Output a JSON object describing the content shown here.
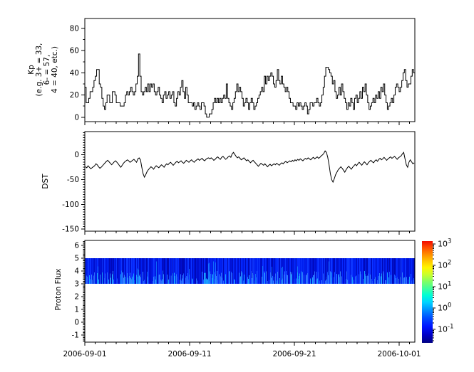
{
  "figure": {
    "background": "#ffffff",
    "axis_color": "#000000",
    "trace_color": "#000000"
  },
  "x_axis": {
    "tick_labels": [
      "2006-09-01",
      "2006-09-11",
      "2006-09-21",
      "2006-10-01"
    ],
    "major_tick_days": [
      0,
      10,
      20,
      30
    ],
    "minor_tick_interval_days": 1,
    "range_days": [
      0,
      31.5
    ],
    "start_date": "2006-09-01",
    "end_date": "2006-10-01"
  },
  "chart_data": [
    {
      "type": "line",
      "subtype": "step",
      "name": "kp-index",
      "ylabel_lines": [
        "Kp",
        "(e.g. 3+ = 33,",
        "6- = 57,",
        "4 = 40, etc.)"
      ],
      "yticks": [
        0,
        20,
        40,
        60,
        80
      ],
      "minor_ytick_interval": 10,
      "ylim": [
        -4,
        89
      ],
      "step_hours": 3,
      "values": [
        27,
        13,
        13,
        17,
        23,
        23,
        27,
        33,
        37,
        43,
        43,
        30,
        27,
        17,
        10,
        7,
        13,
        20,
        20,
        13,
        13,
        23,
        23,
        20,
        13,
        13,
        13,
        10,
        10,
        10,
        13,
        20,
        23,
        20,
        23,
        27,
        23,
        20,
        23,
        30,
        37,
        57,
        37,
        23,
        20,
        23,
        27,
        23,
        30,
        23,
        30,
        27,
        30,
        23,
        20,
        23,
        27,
        20,
        17,
        13,
        20,
        23,
        17,
        20,
        23,
        17,
        20,
        23,
        13,
        10,
        17,
        23,
        20,
        27,
        33,
        23,
        17,
        27,
        20,
        13,
        13,
        13,
        10,
        13,
        7,
        10,
        13,
        10,
        7,
        13,
        13,
        10,
        3,
        0,
        0,
        3,
        3,
        7,
        13,
        17,
        13,
        17,
        13,
        17,
        13,
        17,
        20,
        17,
        30,
        17,
        13,
        10,
        7,
        13,
        17,
        23,
        30,
        23,
        27,
        23,
        17,
        10,
        13,
        17,
        13,
        7,
        13,
        17,
        13,
        7,
        10,
        13,
        17,
        20,
        23,
        27,
        23,
        37,
        30,
        37,
        33,
        37,
        40,
        37,
        30,
        27,
        33,
        43,
        33,
        30,
        37,
        30,
        27,
        23,
        27,
        23,
        17,
        13,
        13,
        10,
        10,
        7,
        13,
        10,
        13,
        10,
        7,
        10,
        13,
        10,
        3,
        7,
        13,
        13,
        10,
        13,
        13,
        17,
        13,
        10,
        13,
        20,
        27,
        37,
        45,
        45,
        43,
        40,
        37,
        30,
        33,
        23,
        17,
        20,
        27,
        20,
        30,
        23,
        17,
        13,
        7,
        13,
        10,
        17,
        13,
        7,
        17,
        20,
        13,
        17,
        23,
        17,
        27,
        23,
        30,
        20,
        13,
        7,
        10,
        13,
        17,
        13,
        20,
        17,
        23,
        17,
        27,
        23,
        30,
        20,
        13,
        7,
        10,
        13,
        17,
        13,
        20,
        27,
        30,
        27,
        23,
        27,
        33,
        40,
        43,
        33,
        27,
        30,
        30,
        37,
        43,
        40
      ]
    },
    {
      "type": "line",
      "name": "dst-index",
      "ylabel": "DST",
      "yticks": [
        0,
        -50,
        -100,
        -150
      ],
      "minor_ytick_interval": 5,
      "ylim": [
        -154,
        47
      ],
      "step_hours": 3,
      "values": [
        -24,
        -26,
        -22,
        -25,
        -28,
        -26,
        -24,
        -22,
        -18,
        -20,
        -24,
        -27,
        -25,
        -22,
        -19,
        -16,
        -13,
        -11,
        -14,
        -17,
        -20,
        -17,
        -14,
        -12,
        -15,
        -18,
        -22,
        -25,
        -21,
        -17,
        -14,
        -12,
        -10,
        -12,
        -15,
        -13,
        -11,
        -9,
        -12,
        -15,
        -8,
        -6,
        -10,
        -25,
        -38,
        -45,
        -40,
        -34,
        -30,
        -27,
        -24,
        -26,
        -29,
        -25,
        -22,
        -24,
        -26,
        -23,
        -20,
        -22,
        -25,
        -21,
        -18,
        -20,
        -17,
        -15,
        -18,
        -21,
        -18,
        -15,
        -13,
        -16,
        -14,
        -12,
        -15,
        -17,
        -14,
        -11,
        -13,
        -15,
        -12,
        -10,
        -13,
        -15,
        -12,
        -10,
        -8,
        -11,
        -9,
        -7,
        -10,
        -12,
        -9,
        -7,
        -6,
        -8,
        -6,
        -8,
        -11,
        -9,
        -6,
        -4,
        -7,
        -9,
        -5,
        -3,
        -6,
        -9,
        -7,
        -4,
        -2,
        -5,
        2,
        5,
        1,
        -3,
        -6,
        -4,
        -7,
        -10,
        -8,
        -6,
        -9,
        -12,
        -10,
        -13,
        -16,
        -13,
        -11,
        -14,
        -17,
        -20,
        -23,
        -20,
        -17,
        -19,
        -21,
        -18,
        -21,
        -24,
        -21,
        -19,
        -22,
        -20,
        -18,
        -20,
        -17,
        -19,
        -21,
        -18,
        -16,
        -18,
        -15,
        -13,
        -16,
        -14,
        -12,
        -14,
        -11,
        -13,
        -10,
        -12,
        -9,
        -11,
        -8,
        -10,
        -12,
        -9,
        -7,
        -9,
        -6,
        -8,
        -10,
        -7,
        -5,
        -8,
        -6,
        -4,
        -7,
        -5,
        -2,
        0,
        3,
        8,
        5,
        -5,
        -20,
        -38,
        -50,
        -55,
        -48,
        -40,
        -35,
        -30,
        -27,
        -24,
        -27,
        -31,
        -35,
        -30,
        -26,
        -23,
        -26,
        -29,
        -25,
        -22,
        -19,
        -22,
        -18,
        -15,
        -18,
        -21,
        -17,
        -14,
        -17,
        -20,
        -16,
        -13,
        -11,
        -14,
        -16,
        -12,
        -10,
        -13,
        -9,
        -7,
        -10,
        -8,
        -5,
        -8,
        -11,
        -8,
        -6,
        -4,
        -7,
        -5,
        -3,
        -6,
        -9,
        -6,
        -4,
        -2,
        2,
        5,
        -8,
        -20,
        -25,
        -15,
        -10,
        -14,
        -18,
        -16
      ]
    },
    {
      "type": "heatmap",
      "name": "proton-flux",
      "ylabel": "Proton Flux",
      "yticks": [
        -1,
        0,
        1,
        2,
        3,
        4,
        5,
        6
      ],
      "minor_ytick_interval": 0.1,
      "ylim": [
        -1.56,
        6.39
      ],
      "band": {
        "y_min": 3,
        "y_max": 5,
        "log10_flux_range": [
          -1.4,
          -0.6
        ],
        "seed": 1234,
        "base_colors": [
          "#0009b8",
          "#000fd0",
          "#0016e0",
          "#001ff0",
          "#0629ff",
          "#0d35ff"
        ],
        "accent_colors": [
          "#1a55ff",
          "#2a6bff",
          "#19a0ff",
          "#2f80ff"
        ]
      },
      "colorbar": {
        "tick_exponents": [
          3,
          2,
          1,
          0,
          -1
        ],
        "tick_label_base": "10",
        "log10_range": [
          -1.63,
          3.13
        ],
        "colormap": "jet",
        "gradient_stops": [
          {
            "offset": 0.0,
            "color": "#f20c00"
          },
          {
            "offset": 0.06,
            "color": "#ff4a00"
          },
          {
            "offset": 0.13,
            "color": "#ff8c00"
          },
          {
            "offset": 0.2,
            "color": "#ffc800"
          },
          {
            "offset": 0.26,
            "color": "#fff600"
          },
          {
            "offset": 0.33,
            "color": "#c8ff2e"
          },
          {
            "offset": 0.4,
            "color": "#7dff66"
          },
          {
            "offset": 0.47,
            "color": "#3cffa0"
          },
          {
            "offset": 0.53,
            "color": "#00ffd4"
          },
          {
            "offset": 0.6,
            "color": "#00d4ff"
          },
          {
            "offset": 0.67,
            "color": "#0096ff"
          },
          {
            "offset": 0.75,
            "color": "#0050ff"
          },
          {
            "offset": 0.84,
            "color": "#0014ff"
          },
          {
            "offset": 0.92,
            "color": "#0000c8"
          },
          {
            "offset": 1.0,
            "color": "#000082"
          }
        ]
      }
    }
  ]
}
